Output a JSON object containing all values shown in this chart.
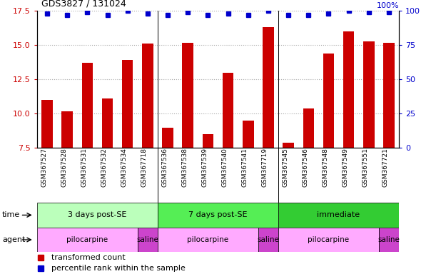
{
  "title": "GDS3827 / 131024",
  "samples": [
    "GSM367527",
    "GSM367528",
    "GSM367531",
    "GSM367532",
    "GSM367534",
    "GSM367718",
    "GSM367536",
    "GSM367538",
    "GSM367539",
    "GSM367540",
    "GSM367541",
    "GSM367719",
    "GSM367545",
    "GSM367546",
    "GSM367548",
    "GSM367549",
    "GSM367551",
    "GSM367721"
  ],
  "transformed_count": [
    11.0,
    10.2,
    13.7,
    11.1,
    13.9,
    15.1,
    9.0,
    15.2,
    8.5,
    13.0,
    9.5,
    16.3,
    7.9,
    10.4,
    14.4,
    16.0,
    15.3,
    15.2
  ],
  "percentile_rank_pct": [
    98,
    97,
    99,
    97,
    100,
    98,
    97,
    99,
    97,
    98,
    97,
    100,
    97,
    97,
    98,
    100,
    99,
    99
  ],
  "ymin": 7.5,
  "ymax": 17.5,
  "yticks_left": [
    7.5,
    10.0,
    12.5,
    15.0,
    17.5
  ],
  "yticks_right": [
    0,
    25,
    50,
    75,
    100
  ],
  "bar_color": "#cc0000",
  "dot_color": "#0000cc",
  "grid_color": "#aaaaaa",
  "bg_color": "#ffffff",
  "time_groups": [
    {
      "label": "3 days post-SE",
      "start": 0,
      "end": 5,
      "color": "#bbffbb"
    },
    {
      "label": "7 days post-SE",
      "start": 6,
      "end": 11,
      "color": "#55ee55"
    },
    {
      "label": "immediate",
      "start": 12,
      "end": 17,
      "color": "#33cc33"
    }
  ],
  "agent_groups": [
    {
      "label": "pilocarpine",
      "start": 0,
      "end": 4,
      "color": "#ffaaff"
    },
    {
      "label": "saline",
      "start": 5,
      "end": 5,
      "color": "#dd44dd"
    },
    {
      "label": "pilocarpine",
      "start": 6,
      "end": 10,
      "color": "#ffaaff"
    },
    {
      "label": "saline",
      "start": 11,
      "end": 11,
      "color": "#dd44dd"
    },
    {
      "label": "pilocarpine",
      "start": 12,
      "end": 16,
      "color": "#ffaaff"
    },
    {
      "label": "saline",
      "start": 17,
      "end": 17,
      "color": "#dd44dd"
    }
  ],
  "legend_bar_label": "transformed count",
  "legend_dot_label": "percentile rank within the sample",
  "time_label": "time",
  "agent_label": "agent",
  "dividers": [
    5.5,
    11.5
  ],
  "n_samples": 18
}
